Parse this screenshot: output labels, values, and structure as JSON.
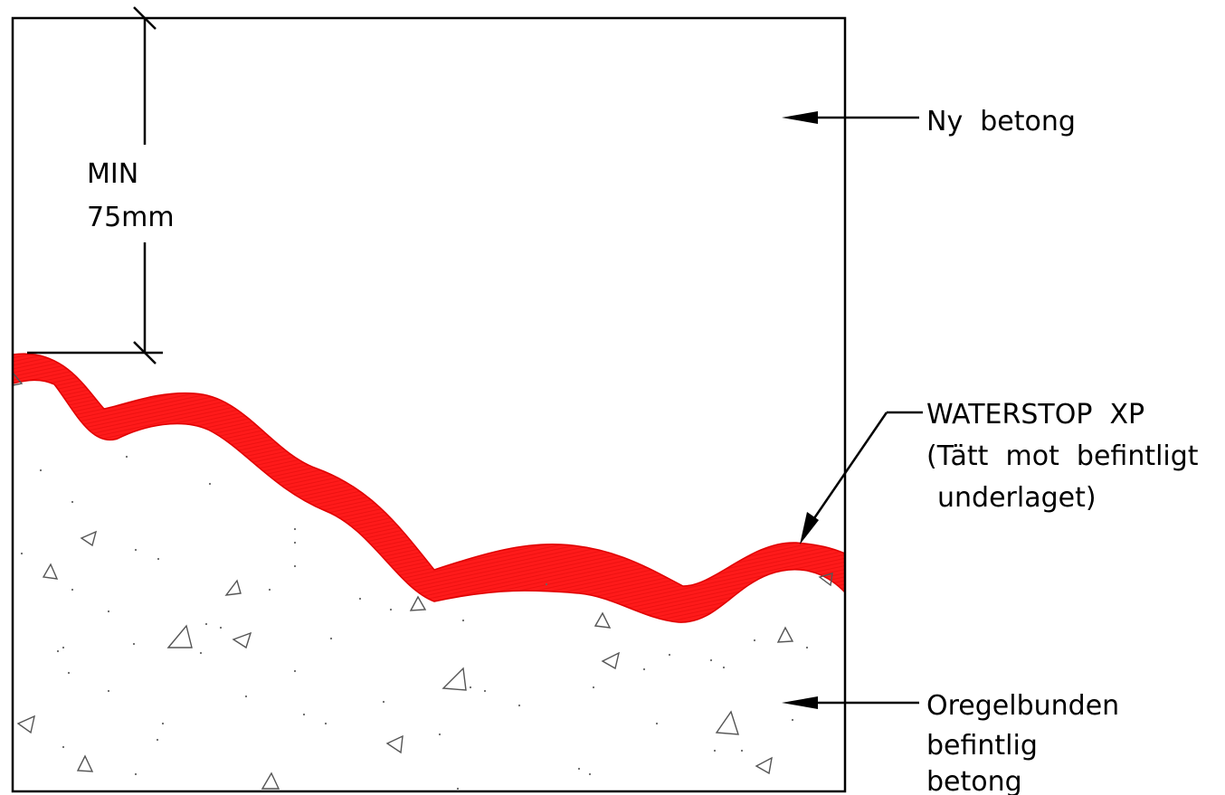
{
  "dimension": {
    "line1": "MIN",
    "line2": "75mm"
  },
  "labels": {
    "new_concrete": "Ny  betong",
    "waterstop": {
      "line1": "WATERSTOP  XP",
      "line2": "(Tätt  mot  befintligt",
      "line3": "underlaget)"
    },
    "existing_concrete": {
      "line1": "Oregelbunden",
      "line2": "befintlig",
      "line3": "betong"
    }
  },
  "colors": {
    "waterstop": "#ff1a1a",
    "waterstop_edge": "#e00000",
    "line": "#000000",
    "aggregate": "#555555"
  }
}
